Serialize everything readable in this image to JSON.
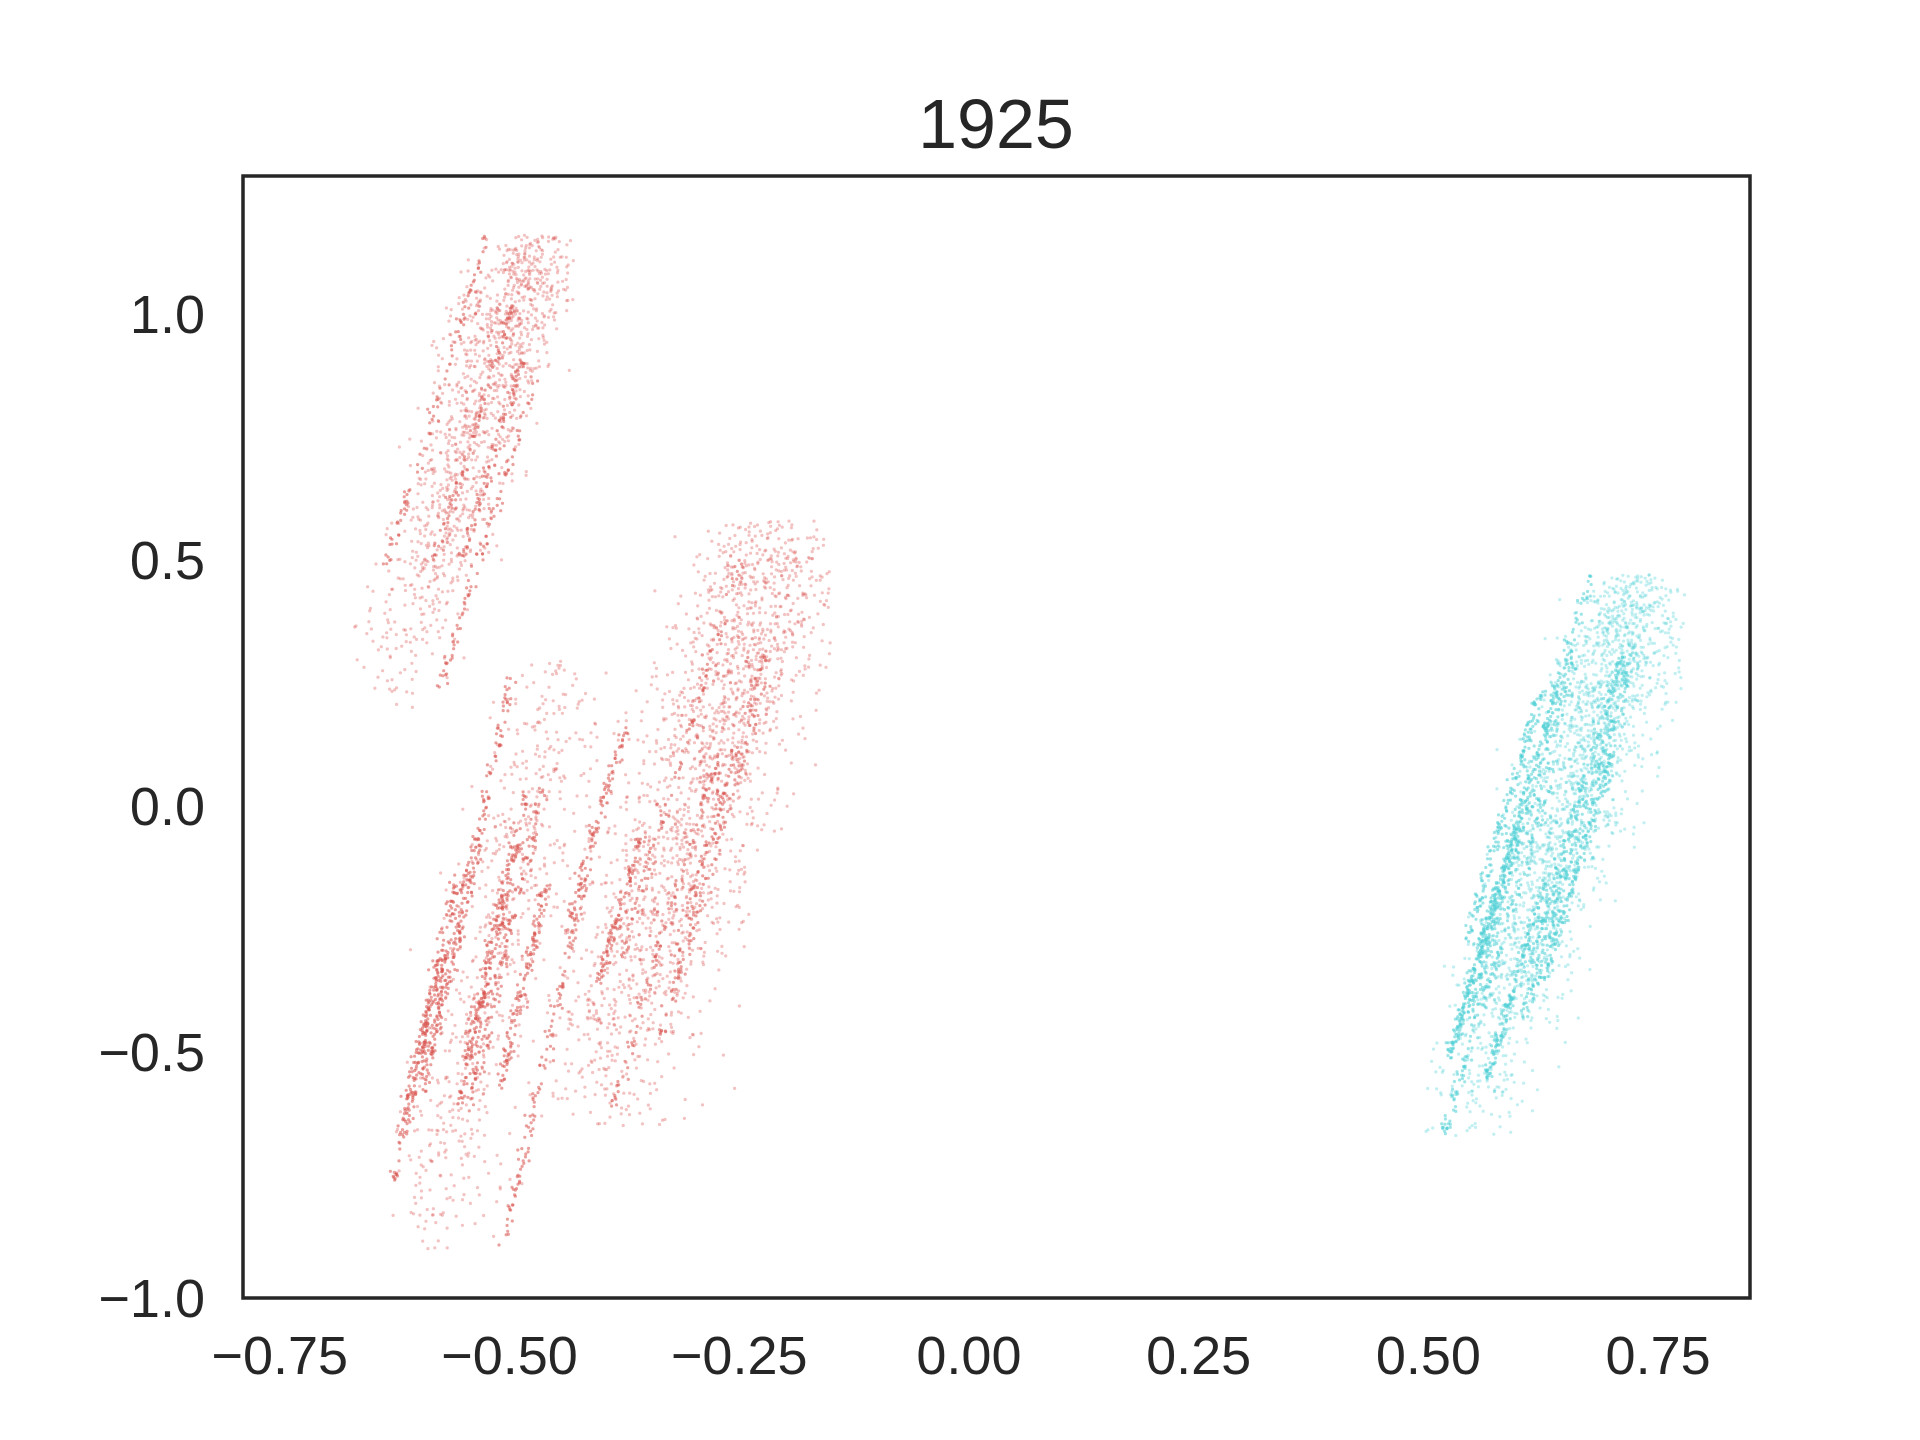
{
  "chart_data": {
    "type": "scatter",
    "title": "1925",
    "xlabel": "",
    "ylabel": "",
    "xlim": [
      -0.79,
      0.85
    ],
    "ylim": [
      -1.0,
      1.28
    ],
    "grid": false,
    "legend": "none",
    "x_ticks": [
      -0.75,
      -0.5,
      -0.25,
      0.0,
      0.25,
      0.5,
      0.75
    ],
    "x_tick_labels": [
      "−0.75",
      "−0.50",
      "−0.25",
      "0.00",
      "0.25",
      "0.50",
      "0.75"
    ],
    "y_ticks": [
      -1.0,
      -0.5,
      0.0,
      0.5,
      1.0
    ],
    "y_tick_labels": [
      "−1.0",
      "−0.5",
      "0.0",
      "0.5",
      "1.0"
    ],
    "series": [
      {
        "color": "#d9534f",
        "clusters": [
          {
            "x": [
              -0.68,
              -0.43
            ],
            "y": [
              0.2,
              1.16
            ],
            "description": "upper-left elongated cluster"
          },
          {
            "x": [
              -0.63,
              -0.4
            ],
            "y": [
              -0.9,
              0.3
            ],
            "description": "lower-left streaks"
          },
          {
            "x": [
              -0.46,
              -0.15
            ],
            "y": [
              -0.65,
              0.58
            ],
            "description": "central diffuse cluster"
          }
        ]
      },
      {
        "color": "#4fd0d6",
        "clusters": [
          {
            "x": [
              0.49,
              0.78
            ],
            "y": [
              -0.67,
              0.47
            ],
            "description": "right elongated cluster"
          }
        ]
      }
    ]
  }
}
